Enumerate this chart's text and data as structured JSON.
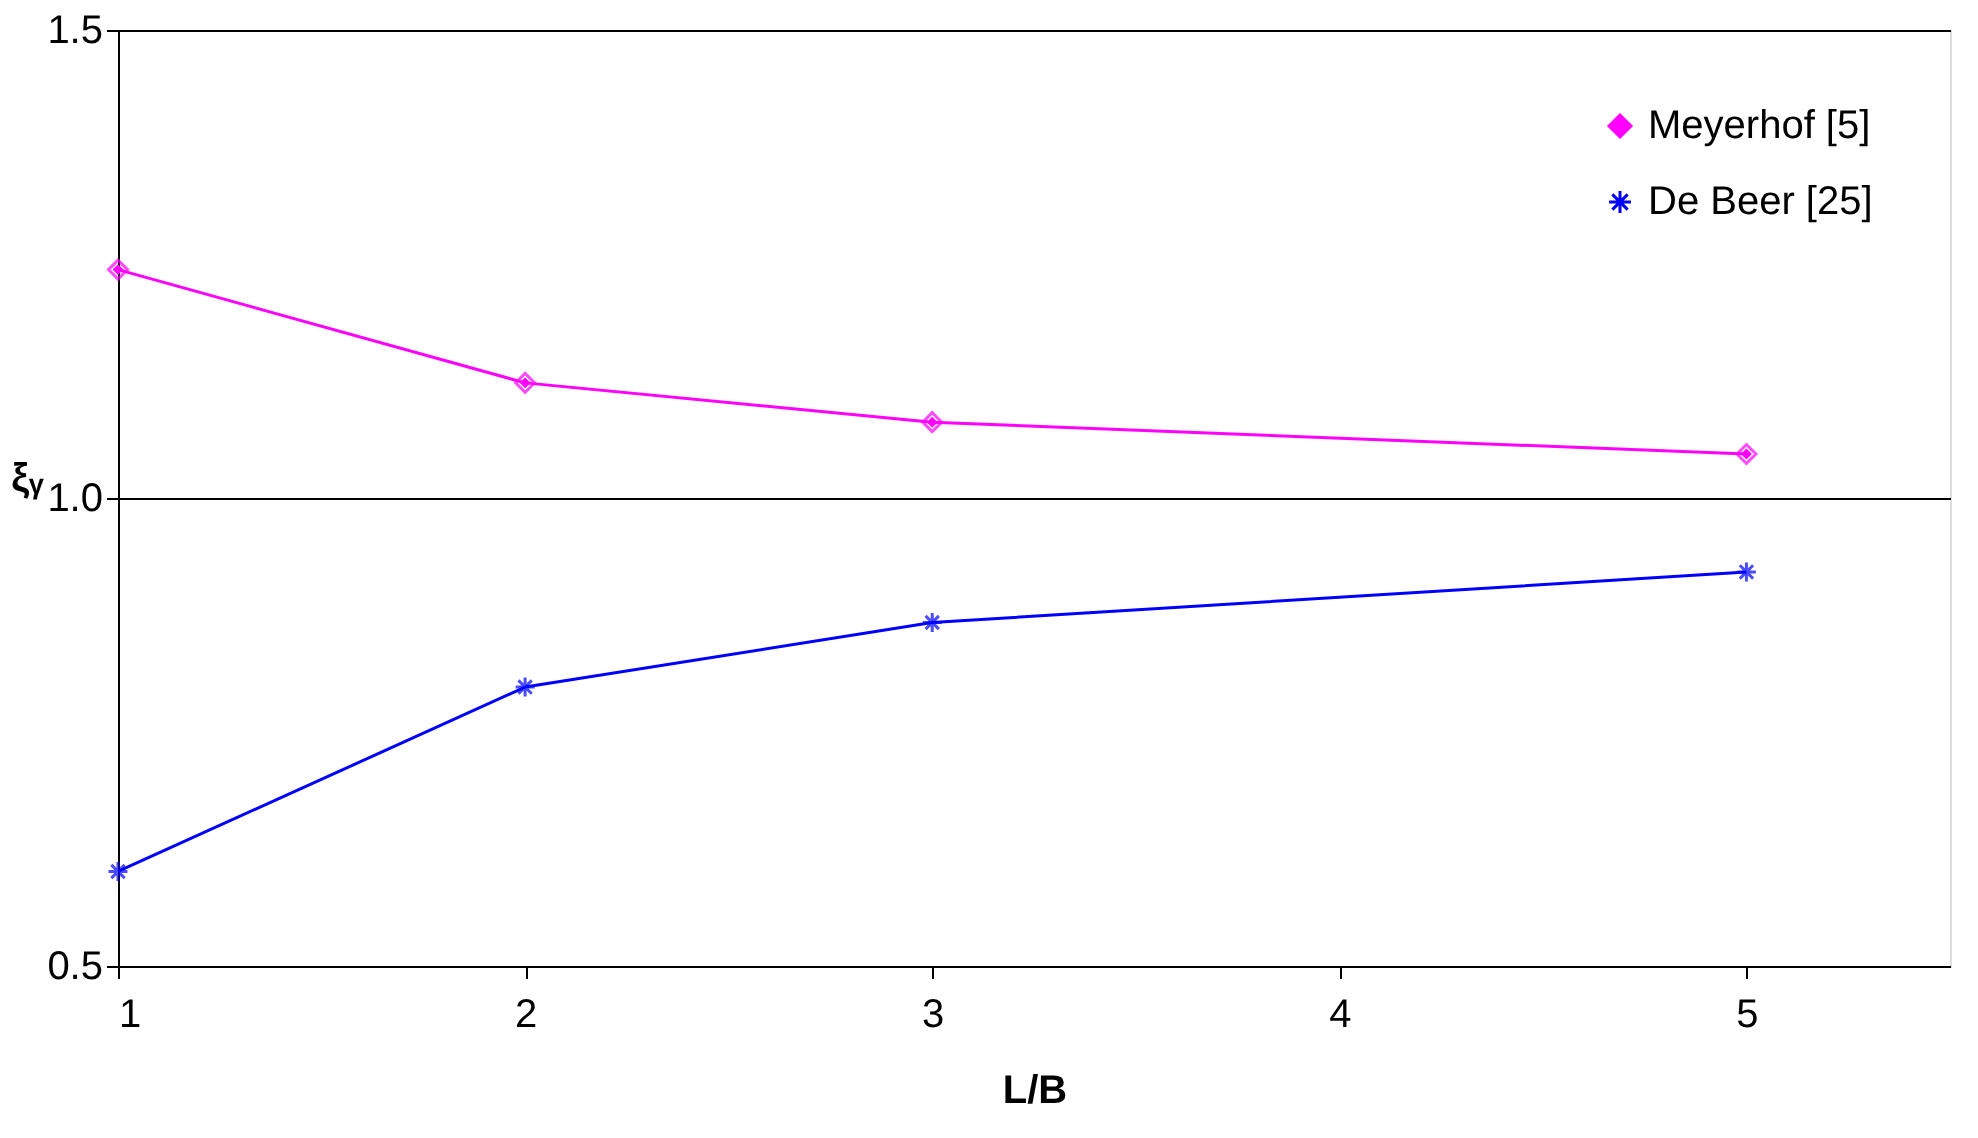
{
  "chart_data": {
    "type": "line",
    "xlabel": "L/B",
    "ylabel": "ξᵧ",
    "x": [
      1,
      2,
      3,
      5
    ],
    "series": [
      {
        "name": "Meyerhof [5]",
        "color": "#ff00ff",
        "marker": "diamond",
        "values": [
          1.244,
          1.123,
          1.081,
          1.047
        ]
      },
      {
        "name": "De Beer [25]",
        "color": "#0000ff",
        "marker": "cross",
        "values": [
          0.601,
          0.798,
          0.867,
          0.921
        ]
      }
    ],
    "xlim": [
      1,
      5.5
    ],
    "xticks": [
      1,
      2,
      3,
      4,
      5
    ],
    "ylim": [
      0.5,
      1.5
    ],
    "yticks": [
      {
        "value": 0.5,
        "label": "0.5"
      },
      {
        "value": 1.0,
        "label": "1.0"
      },
      {
        "value": 1.5,
        "label": "1.5"
      }
    ],
    "grid": "y",
    "legend": "top right",
    "line_style": "solid"
  }
}
